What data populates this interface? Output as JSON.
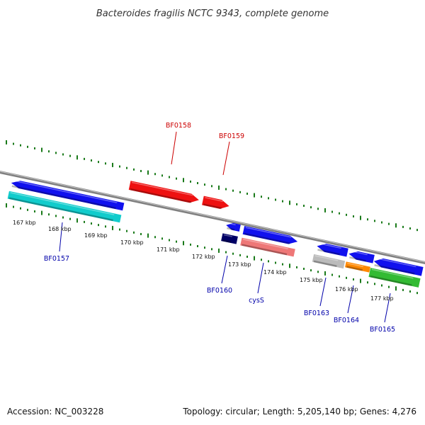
{
  "title": "Bacteroides fragilis NCTC 9343, complete genome",
  "footer": {
    "accession": "Accession: NC_003228",
    "stats": "Topology: circular; Length: 5,205,140 bp; Genes: 4,276"
  },
  "scale": {
    "unit": "kbp",
    "labels": [
      "167 kbp",
      "168 kbp",
      "169 kbp",
      "170 kbp",
      "171 kbp",
      "172 kbp",
      "173 kbp",
      "174 kbp",
      "175 kbp",
      "176 kbp",
      "177 kbp"
    ]
  },
  "colors": {
    "backbone": "#808080",
    "ticks": "#1a7a1a",
    "gene_label_forward": "#cc0000",
    "gene_label_reverse": "#0000aa",
    "blue": "#1111ee",
    "red": "#ee1111",
    "cyan": "#11cccc",
    "navy": "#000066",
    "pink": "#ee7777",
    "gray": "#bbbbbb",
    "orange": "#ff8800",
    "green": "#33bb33"
  },
  "genes": [
    {
      "name": "",
      "color": "blue"
    },
    {
      "name": "BF0157",
      "color": "cyan"
    },
    {
      "name": "BF0158",
      "color": "red"
    },
    {
      "name": "BF0159",
      "color": "red"
    },
    {
      "name": "",
      "color": "blue"
    },
    {
      "name": "BF0160",
      "color": "navy"
    },
    {
      "name": "",
      "color": "blue"
    },
    {
      "name": "cysS",
      "color": "pink"
    },
    {
      "name": "",
      "color": "blue"
    },
    {
      "name": "BF0163",
      "color": "gray"
    },
    {
      "name": "",
      "color": "blue"
    },
    {
      "name": "BF0164",
      "color": "orange"
    },
    {
      "name": "",
      "color": "blue"
    },
    {
      "name": "BF0165",
      "color": "green"
    }
  ]
}
